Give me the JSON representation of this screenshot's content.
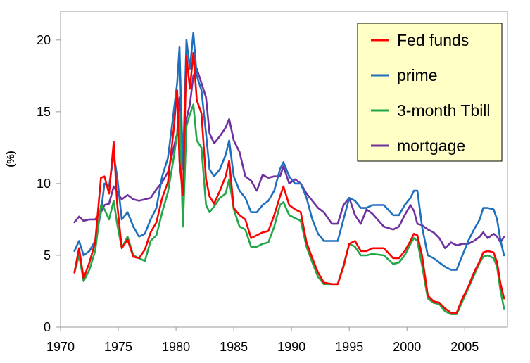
{
  "chart_data": {
    "type": "line",
    "title": "",
    "xlabel": "",
    "ylabel": "(%)",
    "xlim": [
      1970,
      2008.7
    ],
    "ylim": [
      0,
      22
    ],
    "x_ticks": [
      "1970",
      "1975",
      "1980",
      "1985",
      "1990",
      "1995",
      "2000",
      "2005"
    ],
    "y_ticks": [
      "0",
      "5",
      "10",
      "15",
      "20"
    ],
    "grid": false,
    "legend": "top-right",
    "colors": {
      "fed_funds": "#ff0000",
      "prime": "#1f6fbf",
      "tbill": "#22a84a",
      "mortgage": "#7030a0",
      "legend_bg": "#ffffc6"
    },
    "series": [
      {
        "name": "Fed funds",
        "x": [
          1971.2,
          1971.6,
          1972.0,
          1972.5,
          1973.0,
          1973.5,
          1973.8,
          1974.2,
          1974.6,
          1974.9,
          1975.3,
          1975.8,
          1976.3,
          1976.8,
          1977.3,
          1977.8,
          1978.3,
          1978.8,
          1979.3,
          1979.8,
          1980.1,
          1980.3,
          1980.6,
          1980.9,
          1981.2,
          1981.5,
          1981.8,
          1982.2,
          1982.6,
          1982.9,
          1983.3,
          1983.8,
          1984.3,
          1984.6,
          1985.0,
          1985.5,
          1986.0,
          1986.5,
          1987.0,
          1987.5,
          1988.0,
          1988.5,
          1989.0,
          1989.3,
          1989.8,
          1990.3,
          1990.8,
          1991.3,
          1991.8,
          1992.3,
          1992.8,
          1993.5,
          1994.0,
          1994.5,
          1995.0,
          1995.5,
          1996.0,
          1996.5,
          1997.0,
          1998.0,
          1998.8,
          1999.3,
          1999.8,
          2000.3,
          2000.6,
          2000.9,
          2001.3,
          2001.8,
          2002.3,
          2002.8,
          2003.3,
          2003.8,
          2004.3,
          2004.8,
          2005.3,
          2005.8,
          2006.3,
          2006.6,
          2007.0,
          2007.5,
          2007.8,
          2008.1,
          2008.4
        ],
        "values": [
          3.8,
          5.5,
          3.4,
          4.5,
          5.9,
          10.4,
          10.5,
          9.3,
          12.9,
          8.6,
          5.5,
          6.1,
          4.9,
          4.8,
          5.4,
          6.6,
          7.3,
          9.0,
          10.1,
          13.8,
          16.5,
          11.5,
          9.2,
          18.9,
          16.6,
          19.1,
          15.8,
          14.9,
          10.3,
          9.1,
          8.6,
          9.5,
          10.5,
          11.6,
          8.3,
          7.8,
          7.5,
          6.2,
          6.4,
          6.6,
          6.7,
          7.8,
          9.1,
          9.8,
          8.5,
          8.2,
          8.0,
          5.9,
          4.8,
          3.8,
          3.1,
          3.0,
          3.0,
          4.2,
          5.8,
          6.0,
          5.3,
          5.3,
          5.5,
          5.5,
          4.8,
          4.8,
          5.3,
          6.0,
          6.5,
          6.4,
          5.0,
          2.2,
          1.8,
          1.7,
          1.3,
          1.0,
          1.0,
          2.0,
          2.8,
          3.8,
          4.6,
          5.2,
          5.3,
          5.2,
          4.5,
          3.0,
          2.0
        ]
      },
      {
        "name": "prime",
        "x": [
          1971.2,
          1971.6,
          1972.0,
          1972.5,
          1973.0,
          1973.5,
          1973.8,
          1974.2,
          1974.6,
          1974.9,
          1975.3,
          1975.8,
          1976.3,
          1976.8,
          1977.3,
          1977.8,
          1978.3,
          1978.8,
          1979.3,
          1979.8,
          1980.1,
          1980.3,
          1980.6,
          1980.9,
          1981.2,
          1981.5,
          1981.8,
          1982.2,
          1982.6,
          1982.9,
          1983.3,
          1983.8,
          1984.3,
          1984.6,
          1985.0,
          1985.5,
          1986.0,
          1986.5,
          1987.0,
          1987.5,
          1988.0,
          1988.5,
          1989.0,
          1989.3,
          1989.8,
          1990.3,
          1990.8,
          1991.3,
          1991.8,
          1992.3,
          1992.8,
          1993.5,
          1994.0,
          1994.5,
          1995.0,
          1995.5,
          1996.0,
          1996.5,
          1997.0,
          1998.0,
          1998.8,
          1999.3,
          1999.8,
          2000.3,
          2000.6,
          2000.9,
          2001.3,
          2001.8,
          2002.3,
          2002.8,
          2003.3,
          2003.8,
          2004.3,
          2004.8,
          2005.3,
          2005.8,
          2006.3,
          2006.6,
          2007.0,
          2007.5,
          2007.8,
          2008.1,
          2008.4
        ],
        "values": [
          5.3,
          6.0,
          5.0,
          5.3,
          6.0,
          8.0,
          10.0,
          9.8,
          12.0,
          10.5,
          7.5,
          8.0,
          7.0,
          6.3,
          6.5,
          7.5,
          8.3,
          10.5,
          11.8,
          15.0,
          17.0,
          19.5,
          11.0,
          20.0,
          18.0,
          20.5,
          17.5,
          16.5,
          13.5,
          11.0,
          10.5,
          11.0,
          12.0,
          13.0,
          10.5,
          9.5,
          9.0,
          8.0,
          8.0,
          8.5,
          8.8,
          9.5,
          11.0,
          11.5,
          10.5,
          10.0,
          10.0,
          9.0,
          7.5,
          6.5,
          6.0,
          6.0,
          6.0,
          7.5,
          9.0,
          8.8,
          8.3,
          8.3,
          8.5,
          8.5,
          7.8,
          7.8,
          8.5,
          9.0,
          9.5,
          9.5,
          7.0,
          5.0,
          4.8,
          4.5,
          4.2,
          4.0,
          4.0,
          5.0,
          6.0,
          6.8,
          7.5,
          8.3,
          8.3,
          8.2,
          7.5,
          6.0,
          5.0
        ]
      },
      {
        "name": "3-month Tbill",
        "x": [
          1971.2,
          1971.6,
          1972.0,
          1972.5,
          1973.0,
          1973.5,
          1973.8,
          1974.2,
          1974.6,
          1974.9,
          1975.3,
          1975.8,
          1976.3,
          1976.8,
          1977.3,
          1977.8,
          1978.3,
          1978.8,
          1979.3,
          1979.8,
          1980.1,
          1980.3,
          1980.6,
          1980.9,
          1981.2,
          1981.5,
          1981.8,
          1982.2,
          1982.6,
          1982.9,
          1983.3,
          1983.8,
          1984.3,
          1984.6,
          1985.0,
          1985.5,
          1986.0,
          1986.5,
          1987.0,
          1987.5,
          1988.0,
          1988.5,
          1989.0,
          1989.3,
          1989.8,
          1990.3,
          1990.8,
          1991.3,
          1991.8,
          1992.3,
          1992.8,
          1993.5,
          1994.0,
          1994.5,
          1995.0,
          1995.5,
          1996.0,
          1996.5,
          1997.0,
          1998.0,
          1998.8,
          1999.3,
          1999.8,
          2000.3,
          2000.6,
          2000.9,
          2001.3,
          2001.8,
          2002.3,
          2002.8,
          2003.3,
          2003.8,
          2004.3,
          2004.8,
          2005.3,
          2005.8,
          2006.3,
          2006.6,
          2007.0,
          2007.5,
          2007.8,
          2008.1,
          2008.4
        ],
        "values": [
          3.8,
          5.0,
          3.2,
          4.0,
          5.3,
          8.5,
          8.2,
          7.5,
          8.8,
          7.2,
          5.5,
          6.3,
          5.0,
          4.8,
          4.6,
          6.0,
          6.4,
          8.0,
          9.4,
          11.8,
          13.5,
          15.0,
          7.0,
          14.0,
          14.8,
          15.5,
          13.0,
          12.5,
          8.5,
          8.0,
          8.4,
          9.0,
          9.3,
          10.3,
          8.2,
          7.0,
          6.8,
          5.6,
          5.6,
          5.8,
          5.9,
          7.0,
          8.5,
          8.7,
          7.8,
          7.6,
          7.4,
          5.6,
          4.5,
          3.5,
          3.0,
          3.0,
          3.0,
          4.3,
          5.8,
          5.6,
          5.0,
          5.0,
          5.1,
          5.0,
          4.4,
          4.5,
          5.0,
          5.8,
          6.2,
          6.0,
          4.3,
          2.0,
          1.7,
          1.6,
          1.1,
          0.9,
          0.9,
          1.8,
          2.7,
          3.6,
          4.5,
          4.9,
          5.0,
          4.8,
          4.2,
          2.5,
          1.3
        ]
      },
      {
        "name": "mortgage",
        "x": [
          1971.2,
          1971.6,
          1972.0,
          1972.5,
          1973.0,
          1973.5,
          1973.8,
          1974.2,
          1974.6,
          1974.9,
          1975.3,
          1975.8,
          1976.3,
          1976.8,
          1977.3,
          1977.8,
          1978.3,
          1978.8,
          1979.3,
          1979.8,
          1980.1,
          1980.3,
          1980.6,
          1980.9,
          1981.2,
          1981.5,
          1981.8,
          1982.2,
          1982.6,
          1982.9,
          1983.3,
          1983.8,
          1984.3,
          1984.6,
          1985.0,
          1985.5,
          1986.0,
          1986.5,
          1987.0,
          1987.5,
          1988.0,
          1988.5,
          1989.0,
          1989.3,
          1989.8,
          1990.3,
          1990.8,
          1991.3,
          1991.8,
          1992.3,
          1992.8,
          1993.5,
          1994.0,
          1994.5,
          1995.0,
          1995.5,
          1996.0,
          1996.5,
          1997.0,
          1998.0,
          1998.8,
          1999.3,
          1999.8,
          2000.3,
          2000.6,
          2000.9,
          2001.3,
          2001.8,
          2002.3,
          2002.8,
          2003.3,
          2003.8,
          2004.3,
          2004.8,
          2005.3,
          2005.8,
          2006.3,
          2006.6,
          2007.0,
          2007.5,
          2007.8,
          2008.1,
          2008.4
        ],
        "values": [
          7.3,
          7.7,
          7.4,
          7.5,
          7.5,
          8.0,
          8.5,
          8.6,
          9.8,
          9.4,
          8.9,
          9.2,
          8.9,
          8.8,
          8.9,
          9.0,
          9.6,
          10.1,
          10.8,
          12.5,
          13.5,
          16.0,
          12.5,
          14.5,
          15.5,
          17.5,
          18.0,
          17.0,
          16.0,
          13.5,
          12.8,
          13.3,
          13.9,
          14.5,
          13.0,
          12.2,
          10.5,
          10.2,
          9.5,
          10.6,
          10.4,
          10.5,
          10.5,
          11.2,
          10.0,
          10.3,
          10.0,
          9.3,
          8.8,
          8.3,
          8.0,
          7.2,
          7.2,
          8.5,
          9.0,
          7.8,
          7.2,
          8.2,
          7.9,
          7.0,
          6.8,
          7.0,
          7.8,
          8.5,
          8.1,
          7.2,
          7.1,
          6.8,
          6.6,
          6.2,
          5.5,
          5.9,
          5.7,
          5.8,
          5.8,
          6.0,
          6.3,
          6.6,
          6.2,
          6.5,
          6.3,
          5.9,
          6.3
        ]
      }
    ]
  }
}
